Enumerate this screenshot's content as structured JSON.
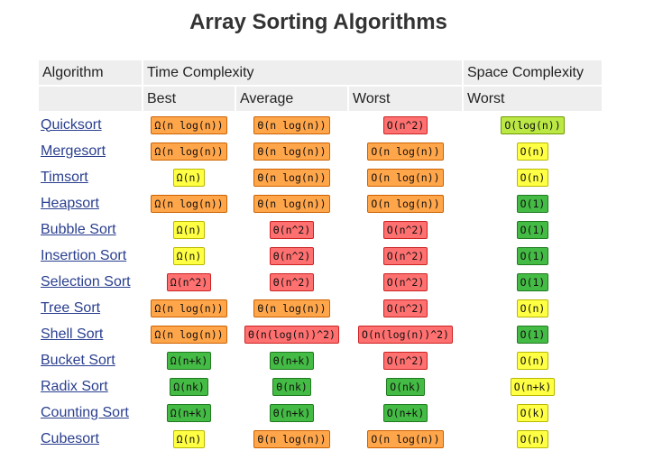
{
  "page": {
    "title": "Array Sorting Algorithms"
  },
  "colors": {
    "orange": "#ffa54a",
    "red": "#ff7070",
    "yellow": "#ffff44",
    "green": "#44bb44",
    "light_green": "#bbe844",
    "header_bg": "#eeeeee",
    "link": "#2a3f8f"
  },
  "table": {
    "header_row1": [
      "Algorithm",
      "Time Complexity",
      "Space Complexity"
    ],
    "header_row2": [
      "",
      "Best",
      "Average",
      "Worst",
      "Worst"
    ],
    "rows": [
      {
        "name": "Quicksort",
        "cells": [
          {
            "text": "Ω(n log(n))",
            "color": "orange"
          },
          {
            "text": "Θ(n log(n))",
            "color": "orange"
          },
          {
            "text": "O(n^2)",
            "color": "red"
          },
          {
            "text": "O(log(n))",
            "color": "light_green"
          }
        ]
      },
      {
        "name": "Mergesort",
        "cells": [
          {
            "text": "Ω(n log(n))",
            "color": "orange"
          },
          {
            "text": "Θ(n log(n))",
            "color": "orange"
          },
          {
            "text": "O(n log(n))",
            "color": "orange"
          },
          {
            "text": "O(n)",
            "color": "yellow"
          }
        ]
      },
      {
        "name": "Timsort",
        "cells": [
          {
            "text": "Ω(n)",
            "color": "yellow"
          },
          {
            "text": "Θ(n log(n))",
            "color": "orange"
          },
          {
            "text": "O(n log(n))",
            "color": "orange"
          },
          {
            "text": "O(n)",
            "color": "yellow"
          }
        ]
      },
      {
        "name": "Heapsort",
        "cells": [
          {
            "text": "Ω(n log(n))",
            "color": "orange"
          },
          {
            "text": "Θ(n log(n))",
            "color": "orange"
          },
          {
            "text": "O(n log(n))",
            "color": "orange"
          },
          {
            "text": "O(1)",
            "color": "green"
          }
        ]
      },
      {
        "name": "Bubble Sort",
        "cells": [
          {
            "text": "Ω(n)",
            "color": "yellow"
          },
          {
            "text": "Θ(n^2)",
            "color": "red"
          },
          {
            "text": "O(n^2)",
            "color": "red"
          },
          {
            "text": "O(1)",
            "color": "green"
          }
        ]
      },
      {
        "name": "Insertion Sort",
        "cells": [
          {
            "text": "Ω(n)",
            "color": "yellow"
          },
          {
            "text": "Θ(n^2)",
            "color": "red"
          },
          {
            "text": "O(n^2)",
            "color": "red"
          },
          {
            "text": "O(1)",
            "color": "green"
          }
        ]
      },
      {
        "name": "Selection Sort",
        "cells": [
          {
            "text": "Ω(n^2)",
            "color": "red"
          },
          {
            "text": "Θ(n^2)",
            "color": "red"
          },
          {
            "text": "O(n^2)",
            "color": "red"
          },
          {
            "text": "O(1)",
            "color": "green"
          }
        ]
      },
      {
        "name": "Tree Sort",
        "cells": [
          {
            "text": "Ω(n log(n))",
            "color": "orange"
          },
          {
            "text": "Θ(n log(n))",
            "color": "orange"
          },
          {
            "text": "O(n^2)",
            "color": "red"
          },
          {
            "text": "O(n)",
            "color": "yellow"
          }
        ]
      },
      {
        "name": "Shell Sort",
        "cells": [
          {
            "text": "Ω(n log(n))",
            "color": "orange"
          },
          {
            "text": "Θ(n(log(n))^2)",
            "color": "red"
          },
          {
            "text": "O(n(log(n))^2)",
            "color": "red"
          },
          {
            "text": "O(1)",
            "color": "green"
          }
        ]
      },
      {
        "name": "Bucket Sort",
        "cells": [
          {
            "text": "Ω(n+k)",
            "color": "green"
          },
          {
            "text": "Θ(n+k)",
            "color": "green"
          },
          {
            "text": "O(n^2)",
            "color": "red"
          },
          {
            "text": "O(n)",
            "color": "yellow"
          }
        ]
      },
      {
        "name": "Radix Sort",
        "cells": [
          {
            "text": "Ω(nk)",
            "color": "green"
          },
          {
            "text": "Θ(nk)",
            "color": "green"
          },
          {
            "text": "O(nk)",
            "color": "green"
          },
          {
            "text": "O(n+k)",
            "color": "yellow"
          }
        ]
      },
      {
        "name": "Counting Sort",
        "cells": [
          {
            "text": "Ω(n+k)",
            "color": "green"
          },
          {
            "text": "Θ(n+k)",
            "color": "green"
          },
          {
            "text": "O(n+k)",
            "color": "green"
          },
          {
            "text": "O(k)",
            "color": "yellow"
          }
        ]
      },
      {
        "name": "Cubesort",
        "cells": [
          {
            "text": "Ω(n)",
            "color": "yellow"
          },
          {
            "text": "Θ(n log(n))",
            "color": "orange"
          },
          {
            "text": "O(n log(n))",
            "color": "orange"
          },
          {
            "text": "O(n)",
            "color": "yellow"
          }
        ]
      }
    ]
  }
}
